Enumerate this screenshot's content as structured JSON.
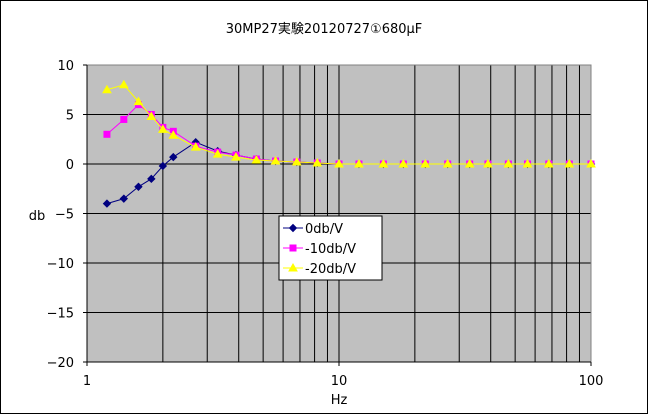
{
  "chart_data": {
    "type": "line",
    "title": "30MP27実験20120727①680μF",
    "xlabel": "Hz",
    "ylabel": "db",
    "xscale": "log",
    "xlim": [
      1,
      100
    ],
    "ylim": [
      -20,
      10
    ],
    "x_ticks": [
      "1",
      "10",
      "100"
    ],
    "y_ticks": [
      "10",
      "5",
      "0",
      "−5",
      "−10",
      "−15",
      "−20"
    ],
    "grid": true,
    "legend_position": "center-left",
    "plot_background": "#c0c0c0",
    "x": [
      1.2,
      1.4,
      1.6,
      1.8,
      2.0,
      2.2,
      2.7,
      3.3,
      3.9,
      4.7,
      5.6,
      6.8,
      8.2,
      10,
      12,
      15,
      18,
      22,
      27,
      33,
      39,
      47,
      56,
      68,
      82,
      100
    ],
    "series": [
      {
        "name": "0db/V",
        "color": "#000080",
        "marker": "diamond",
        "values": [
          -4.0,
          -3.5,
          -2.3,
          -1.5,
          -0.2,
          0.7,
          2.2,
          1.3,
          0.9,
          0.5,
          0.3,
          0.2,
          0.1,
          0.0,
          0.0,
          0.0,
          0.0,
          0.0,
          0.0,
          0.0,
          0.0,
          0.0,
          0.0,
          0.0,
          0.0,
          0.0
        ]
      },
      {
        "name": "-10db/V",
        "color": "#ff00ff",
        "marker": "square",
        "values": [
          3.0,
          4.5,
          6.0,
          5.0,
          3.7,
          3.3,
          1.8,
          1.2,
          0.9,
          0.5,
          0.3,
          0.2,
          0.1,
          0.0,
          0.0,
          0.0,
          0.0,
          0.0,
          0.0,
          0.0,
          0.0,
          0.0,
          0.0,
          0.0,
          0.0,
          0.0
        ]
      },
      {
        "name": "-20db/V",
        "color": "#ffff00",
        "marker": "triangle",
        "values": [
          7.5,
          8.0,
          6.3,
          4.8,
          3.5,
          2.9,
          1.7,
          1.0,
          0.7,
          0.4,
          0.3,
          0.2,
          0.1,
          0.0,
          0.0,
          0.0,
          0.0,
          0.0,
          0.0,
          0.0,
          0.0,
          0.0,
          0.0,
          0.0,
          0.0,
          0.0
        ]
      }
    ]
  }
}
